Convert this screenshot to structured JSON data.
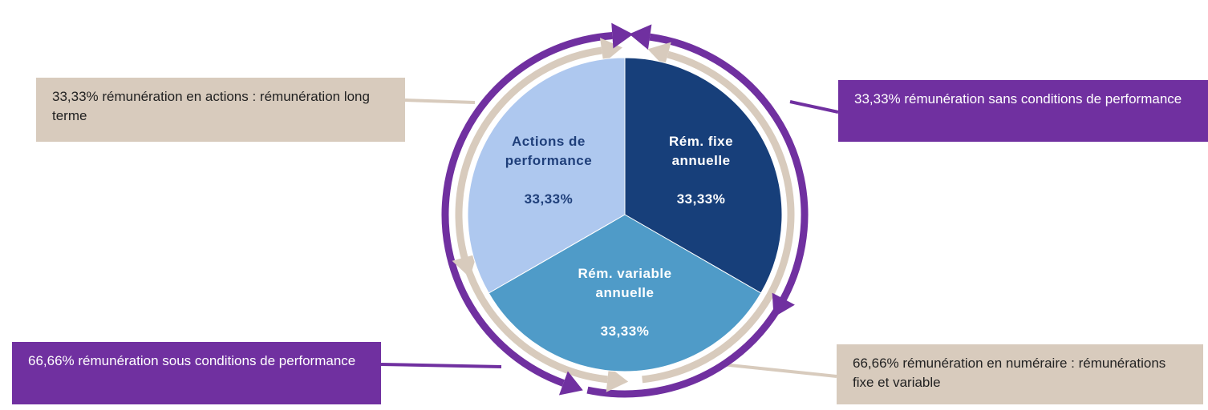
{
  "chart_data": {
    "type": "pie",
    "categories": [
      "Rém. fixe annuelle",
      "Rém. variable annuelle",
      "Actions de performance"
    ],
    "values": [
      33.33,
      33.33,
      33.33
    ],
    "value_labels": [
      "33,33%",
      "33,33%",
      "33,33%"
    ],
    "colors": [
      "#173f7a",
      "#4f9bc8",
      "#aec8ef"
    ],
    "label_colors": [
      "#ffffff",
      "#ffffff",
      "#1f3f7a"
    ],
    "annotations": [
      "33,33% rémunération en actions : rémunération long terme",
      "33,33% rémunération sans conditions de performance",
      "66,66% rémunération sous conditions de performance",
      "66,66% rémunération en numéraire : rémunérations fixe et variable"
    ]
  }
}
